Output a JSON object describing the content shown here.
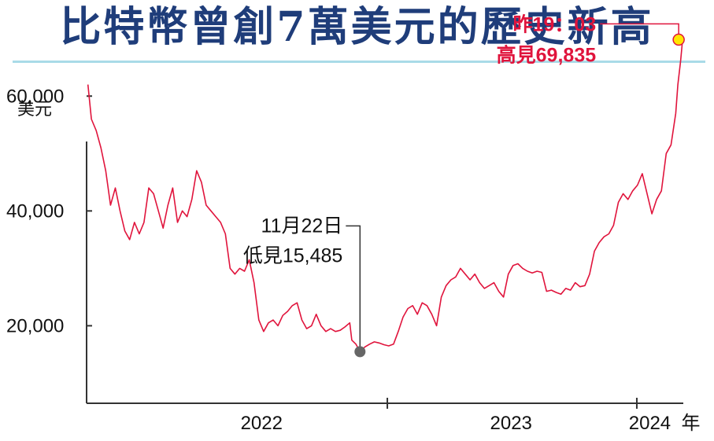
{
  "title": "比特幣曾創7萬美元的歷史新高",
  "colors": {
    "title": "#1f3d7a",
    "rule": "#a9dbe8",
    "line": "#e0143c",
    "axis": "#333333",
    "high_marker_fill": "#ffe600",
    "low_marker_fill": "#666666"
  },
  "chart_data": {
    "type": "line",
    "title": "比特幣曾創7萬美元的歷史新高",
    "ylabel": "美元",
    "xlabel": "年",
    "ylim": [
      6500,
      74000
    ],
    "xlim": [
      "2021-10-18",
      "2024-03-09"
    ],
    "y_ticks": [
      20000,
      40000,
      60000
    ],
    "y_tick_labels": [
      "20,000",
      "40,000",
      "60,000"
    ],
    "x_tick_dates": [
      "2023-01-01",
      "2024-01-01"
    ],
    "x_labels": [
      {
        "date": "2022-07-01",
        "label": "2022"
      },
      {
        "date": "2023-07-01",
        "label": "2023"
      },
      {
        "date": "2024-01-20",
        "label": "2024"
      }
    ],
    "x_unit_label": "年",
    "grid": false,
    "series": [
      {
        "points": [
          [
            "2021-10-20",
            62000
          ],
          [
            "2021-10-25",
            56000
          ],
          [
            "2021-11-01",
            54000
          ],
          [
            "2021-11-08",
            51000
          ],
          [
            "2021-11-15",
            47000
          ],
          [
            "2021-11-22",
            41000
          ],
          [
            "2021-11-29",
            44000
          ],
          [
            "2021-12-06",
            40000
          ],
          [
            "2021-12-13",
            36500
          ],
          [
            "2021-12-20",
            35000
          ],
          [
            "2021-12-27",
            38000
          ],
          [
            "2022-01-03",
            36000
          ],
          [
            "2022-01-10",
            38000
          ],
          [
            "2022-01-17",
            44000
          ],
          [
            "2022-01-24",
            43000
          ],
          [
            "2022-01-31",
            40000
          ],
          [
            "2022-02-07",
            37000
          ],
          [
            "2022-02-14",
            41000
          ],
          [
            "2022-02-21",
            44000
          ],
          [
            "2022-02-28",
            38000
          ],
          [
            "2022-03-07",
            40000
          ],
          [
            "2022-03-14",
            39000
          ],
          [
            "2022-03-21",
            42000
          ],
          [
            "2022-03-28",
            47000
          ],
          [
            "2022-04-04",
            45000
          ],
          [
            "2022-04-11",
            41000
          ],
          [
            "2022-04-18",
            40000
          ],
          [
            "2022-04-25",
            39000
          ],
          [
            "2022-05-02",
            38000
          ],
          [
            "2022-05-09",
            36000
          ],
          [
            "2022-05-16",
            30000
          ],
          [
            "2022-05-23",
            29000
          ],
          [
            "2022-05-30",
            30000
          ],
          [
            "2022-06-06",
            29500
          ],
          [
            "2022-06-13",
            31500
          ],
          [
            "2022-06-20",
            27500
          ],
          [
            "2022-06-27",
            21000
          ],
          [
            "2022-07-04",
            19000
          ],
          [
            "2022-07-11",
            20500
          ],
          [
            "2022-07-18",
            21000
          ],
          [
            "2022-07-25",
            20000
          ],
          [
            "2022-08-01",
            21800
          ],
          [
            "2022-08-08",
            22500
          ],
          [
            "2022-08-15",
            23500
          ],
          [
            "2022-08-22",
            24000
          ],
          [
            "2022-08-29",
            21000
          ],
          [
            "2022-09-05",
            19500
          ],
          [
            "2022-09-12",
            20000
          ],
          [
            "2022-09-19",
            22000
          ],
          [
            "2022-09-26",
            20000
          ],
          [
            "2022-10-03",
            19000
          ],
          [
            "2022-10-10",
            19500
          ],
          [
            "2022-10-17",
            19000
          ],
          [
            "2022-10-24",
            19200
          ],
          [
            "2022-10-31",
            19800
          ],
          [
            "2022-11-07",
            20500
          ],
          [
            "2022-11-10",
            17500
          ],
          [
            "2022-11-16",
            16800
          ],
          [
            "2022-11-22",
            15485
          ],
          [
            "2022-11-29",
            16300
          ],
          [
            "2022-12-06",
            16800
          ],
          [
            "2022-12-13",
            17200
          ],
          [
            "2022-12-20",
            17000
          ],
          [
            "2022-12-27",
            16700
          ],
          [
            "2023-01-03",
            16500
          ],
          [
            "2023-01-10",
            16800
          ],
          [
            "2023-01-17",
            19000
          ],
          [
            "2023-01-24",
            21500
          ],
          [
            "2023-01-31",
            23000
          ],
          [
            "2023-02-07",
            23500
          ],
          [
            "2023-02-14",
            22000
          ],
          [
            "2023-02-21",
            24000
          ],
          [
            "2023-02-28",
            23500
          ],
          [
            "2023-03-07",
            22000
          ],
          [
            "2023-03-14",
            20000
          ],
          [
            "2023-03-21",
            25000
          ],
          [
            "2023-03-28",
            27000
          ],
          [
            "2023-04-04",
            28000
          ],
          [
            "2023-04-11",
            28500
          ],
          [
            "2023-04-18",
            30000
          ],
          [
            "2023-04-25",
            29000
          ],
          [
            "2023-05-02",
            28000
          ],
          [
            "2023-05-09",
            29000
          ],
          [
            "2023-05-16",
            27500
          ],
          [
            "2023-05-23",
            26500
          ],
          [
            "2023-05-30",
            27000
          ],
          [
            "2023-06-06",
            27500
          ],
          [
            "2023-06-13",
            26000
          ],
          [
            "2023-06-20",
            25000
          ],
          [
            "2023-06-27",
            29000
          ],
          [
            "2023-07-04",
            30500
          ],
          [
            "2023-07-11",
            30800
          ],
          [
            "2023-07-18",
            30000
          ],
          [
            "2023-07-25",
            29500
          ],
          [
            "2023-08-01",
            29200
          ],
          [
            "2023-08-08",
            29500
          ],
          [
            "2023-08-15",
            29300
          ],
          [
            "2023-08-22",
            26000
          ],
          [
            "2023-08-29",
            26200
          ],
          [
            "2023-09-05",
            25800
          ],
          [
            "2023-09-12",
            25500
          ],
          [
            "2023-09-19",
            26500
          ],
          [
            "2023-09-26",
            26200
          ],
          [
            "2023-10-03",
            27500
          ],
          [
            "2023-10-10",
            26800
          ],
          [
            "2023-10-17",
            27000
          ],
          [
            "2023-10-24",
            29000
          ],
          [
            "2023-10-31",
            33000
          ],
          [
            "2023-11-07",
            34500
          ],
          [
            "2023-11-14",
            35500
          ],
          [
            "2023-11-21",
            36000
          ],
          [
            "2023-11-28",
            37500
          ],
          [
            "2023-12-05",
            41500
          ],
          [
            "2023-12-12",
            43000
          ],
          [
            "2023-12-19",
            42000
          ],
          [
            "2023-12-26",
            43500
          ],
          [
            "2024-01-02",
            44500
          ],
          [
            "2024-01-09",
            46500
          ],
          [
            "2024-01-16",
            43000
          ],
          [
            "2024-01-23",
            39500
          ],
          [
            "2024-01-30",
            42000
          ],
          [
            "2024-02-06",
            43500
          ],
          [
            "2024-02-13",
            50000
          ],
          [
            "2024-02-20",
            51500
          ],
          [
            "2024-02-27",
            57000
          ],
          [
            "2024-03-01",
            62000
          ],
          [
            "2024-03-05",
            66000
          ],
          [
            "2024-03-08",
            69835
          ]
        ]
      }
    ],
    "annotations": [
      {
        "date": "2022-11-22",
        "value": 15485,
        "lines": [
          "11月22日",
          "低見15,485"
        ],
        "marker": "low"
      },
      {
        "date": "2024-03-08",
        "value": 69835,
        "lines": [
          "昨19：03",
          "高見69,835"
        ],
        "marker": "high"
      }
    ]
  }
}
